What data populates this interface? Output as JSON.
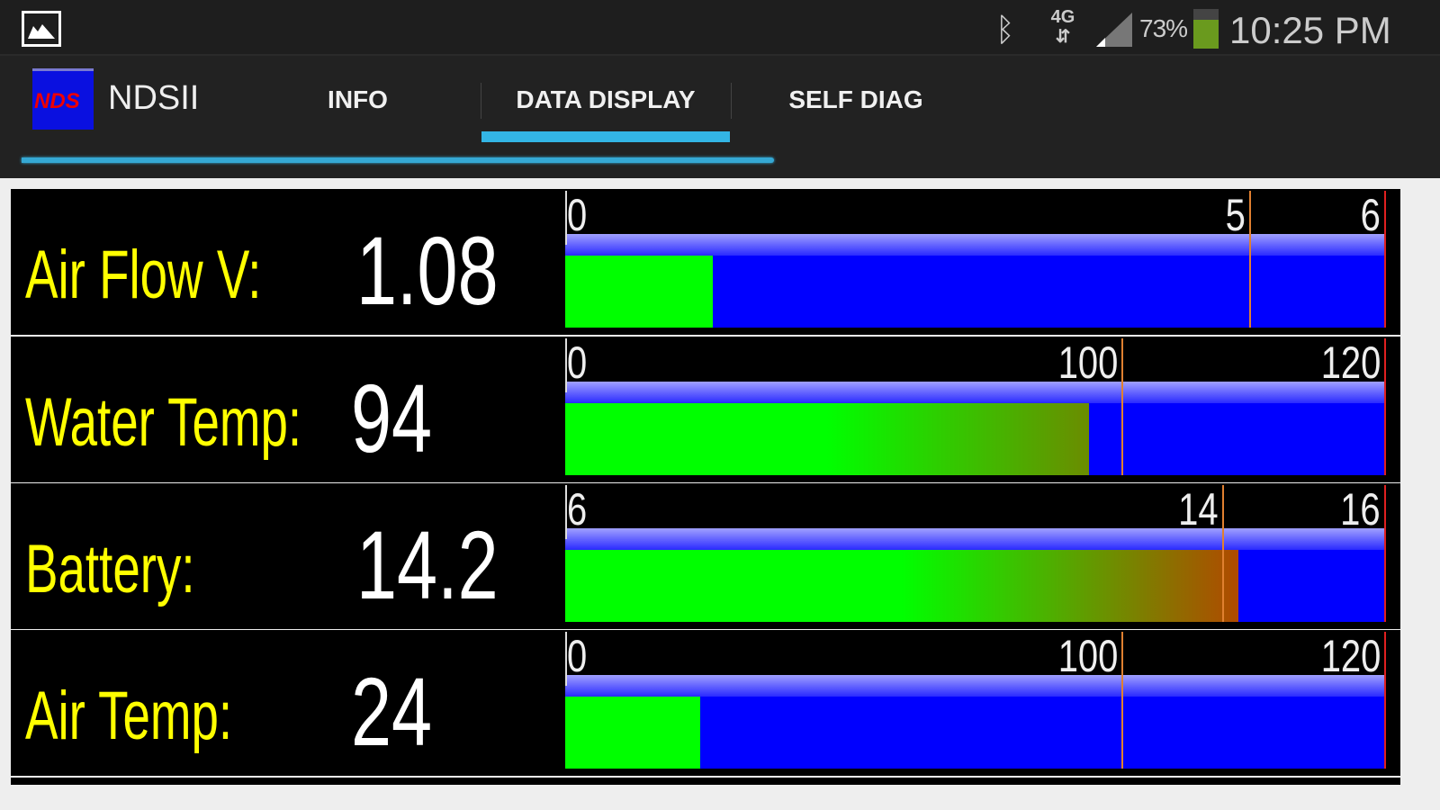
{
  "status_bar": {
    "icons": [
      "gallery-icon",
      "bluetooth-icon",
      "4g-data-icon",
      "signal-icon",
      "battery-icon"
    ],
    "network": "4G",
    "battery_percent": "73%",
    "battery_level": 0.73,
    "battery_color": "#6a9a1e",
    "time": "10:25 PM"
  },
  "action_bar": {
    "app_name": "NDSII",
    "logo_text": "NDS",
    "tabs": [
      {
        "label": "INFO"
      },
      {
        "label": "DATA DISPLAY",
        "selected": true
      },
      {
        "label": "SELF DIAG"
      }
    ],
    "accent": "#33b5e5"
  },
  "gauges": [
    {
      "label": "Air Flow V:",
      "value": "1.08",
      "min": "0",
      "warn": "5",
      "max": "6",
      "fill_fraction": 0.18,
      "warn_fraction": 0.833,
      "fill_end_color": "#00ff00"
    },
    {
      "label": "Water Temp:",
      "value": "94",
      "min": "0",
      "warn": "100",
      "max": "120",
      "fill_fraction": 0.638,
      "warn_fraction": 0.678,
      "fill_end_color": "#6b8c00"
    },
    {
      "label": "Battery:",
      "value": "14.2",
      "min": "6",
      "warn": "14",
      "max": "16",
      "fill_fraction": 0.82,
      "warn_fraction": 0.8,
      "fill_end_color": "#b04a00"
    },
    {
      "label": "Air Temp:",
      "value": "24",
      "min": "0",
      "warn": "100",
      "max": "120",
      "fill_fraction": 0.164,
      "warn_fraction": 0.678,
      "fill_end_color": "#00ff00"
    }
  ],
  "colors": {
    "label": "#ffff00",
    "fill_start": "#00ff00",
    "gauge_bg": "#0000ff",
    "warn_line": "#e08030",
    "max_line": "#e02020"
  }
}
